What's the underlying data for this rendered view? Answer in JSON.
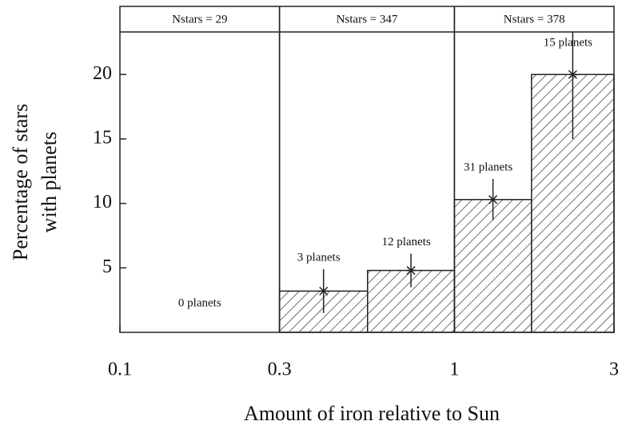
{
  "chart_data": {
    "type": "histogram",
    "xlabel": "Amount of iron relative to Sun",
    "ylabel": [
      "Percentage of stars",
      "with planets"
    ],
    "bins": [
      0.1,
      0.3,
      0.55,
      1,
      1.7,
      3
    ],
    "values": [
      0,
      3.2,
      4.8,
      10.3,
      20
    ],
    "errors": [
      null,
      1.7,
      1.3,
      1.6,
      5
    ],
    "bin_labels": [
      "0 planets",
      "3 planets",
      "12 planets",
      "31 planets",
      "15 planets"
    ],
    "groups": [
      {
        "label": "Nstars = 29",
        "range": [
          0.1,
          0.3
        ]
      },
      {
        "label": "Nstars = 347",
        "range": [
          0.3,
          1
        ]
      },
      {
        "label": "Nstars = 378",
        "range": [
          1,
          3
        ]
      }
    ],
    "xscale": "log",
    "xlim": [
      0.1,
      3
    ],
    "xticks": [
      0.1,
      0.3,
      1,
      3
    ],
    "ylim": [
      0,
      23.3
    ],
    "yticks": [
      5,
      10,
      15,
      20
    ],
    "color": "#222222",
    "hatch": true
  }
}
